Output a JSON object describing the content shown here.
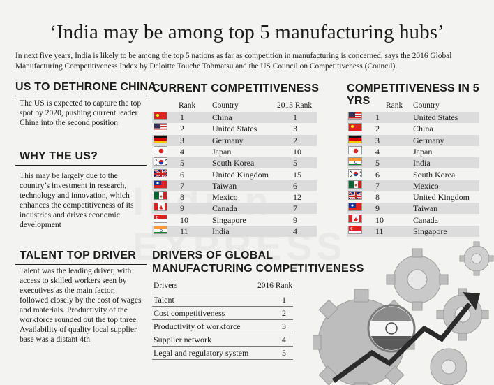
{
  "title": "‘India may be among top 5 manufacturing hubs’",
  "intro": "In next five years, India is likely to be among the top 5 nations as far as competition in manufacturing is concerned, says the 2016 Global Manufacturing Competitiveness Index by Deloitte Touche Tohmatsu and the US Council on Competitiveness (Council).",
  "watermark": "Indian EXPRESS",
  "sidebar": [
    {
      "heading": "US TO DETHRONE CHINA",
      "text": "The US is expected to capture the top spot by 2020, pushing current leader China into the second position"
    },
    {
      "heading": "WHY THE US?",
      "text": "This may be largely due to the country’s investment in research, technology and innovation, which enhances the competitiveness of its industries and drives economic development"
    },
    {
      "heading": "TALENT TOP DRIVER",
      "text": "Talent was the leading driver, with access to skilled workers seen by executives as the main factor, followed closely by the cost of wages and materials. Productivity of the workforce rounded out the top three. Availability of quality local supplier base was a distant 4th"
    }
  ],
  "current": {
    "heading": "CURRENT COMPETITIVENESS",
    "columns": {
      "rank": "Rank",
      "country": "Country",
      "prev": "2013 Rank"
    },
    "rows": [
      {
        "rank": "1",
        "country": "China",
        "prev": "1",
        "flag": "china-flag-icon"
      },
      {
        "rank": "2",
        "country": "United States",
        "prev": "3",
        "flag": "usa-flag-icon"
      },
      {
        "rank": "3",
        "country": "Germany",
        "prev": "2",
        "flag": "germany-flag-icon"
      },
      {
        "rank": "4",
        "country": "Japan",
        "prev": "10",
        "flag": "japan-flag-icon"
      },
      {
        "rank": "5",
        "country": "South Korea",
        "prev": "5",
        "flag": "south-korea-flag-icon"
      },
      {
        "rank": "6",
        "country": "United Kingdom",
        "prev": "15",
        "flag": "uk-flag-icon"
      },
      {
        "rank": "7",
        "country": "Taiwan",
        "prev": "6",
        "flag": "taiwan-flag-icon"
      },
      {
        "rank": "8",
        "country": "Mexico",
        "prev": "12",
        "flag": "mexico-flag-icon"
      },
      {
        "rank": "9",
        "country": "Canada",
        "prev": "7",
        "flag": "canada-flag-icon"
      },
      {
        "rank": "10",
        "country": "Singapore",
        "prev": "9",
        "flag": "singapore-flag-icon"
      },
      {
        "rank": "11",
        "country": "India",
        "prev": "4",
        "flag": "india-flag-icon"
      }
    ]
  },
  "future": {
    "heading": "COMPETITIVENESS IN 5 YRS",
    "columns": {
      "rank": "Rank",
      "country": "Country"
    },
    "rows": [
      {
        "rank": "1",
        "country": "United States",
        "flag": "usa-flag-icon"
      },
      {
        "rank": "2",
        "country": "China",
        "flag": "china-flag-icon"
      },
      {
        "rank": "3",
        "country": "Germany",
        "flag": "germany-flag-icon"
      },
      {
        "rank": "4",
        "country": "Japan",
        "flag": "japan-flag-icon"
      },
      {
        "rank": "5",
        "country": "India",
        "flag": "india-flag-icon"
      },
      {
        "rank": "6",
        "country": "South Korea",
        "flag": "south-korea-flag-icon"
      },
      {
        "rank": "7",
        "country": "Mexico",
        "flag": "mexico-flag-icon"
      },
      {
        "rank": "8",
        "country": "United Kingdom",
        "flag": "uk-flag-icon"
      },
      {
        "rank": "9",
        "country": "Taiwan",
        "flag": "taiwan-flag-icon"
      },
      {
        "rank": "10",
        "country": "Canada",
        "flag": "canada-flag-icon"
      },
      {
        "rank": "11",
        "country": "Singapore",
        "flag": "singapore-flag-icon"
      }
    ]
  },
  "drivers": {
    "heading_line1": "DRIVERS OF GLOBAL",
    "heading_line2": "MANUFACTURING COMPETITIVENESS",
    "columns": {
      "driver": "Drivers",
      "rank": "2016 Rank"
    },
    "rows": [
      {
        "driver": "Talent",
        "rank": "1"
      },
      {
        "driver": "Cost competitiveness",
        "rank": "2"
      },
      {
        "driver": "Productivity of workforce",
        "rank": "3"
      },
      {
        "driver": "Supplier network",
        "rank": "4"
      },
      {
        "driver": "Legal and regulatory system",
        "rank": "5"
      }
    ]
  },
  "illustration": {
    "icon": "gears-growth-arrow-icon"
  }
}
